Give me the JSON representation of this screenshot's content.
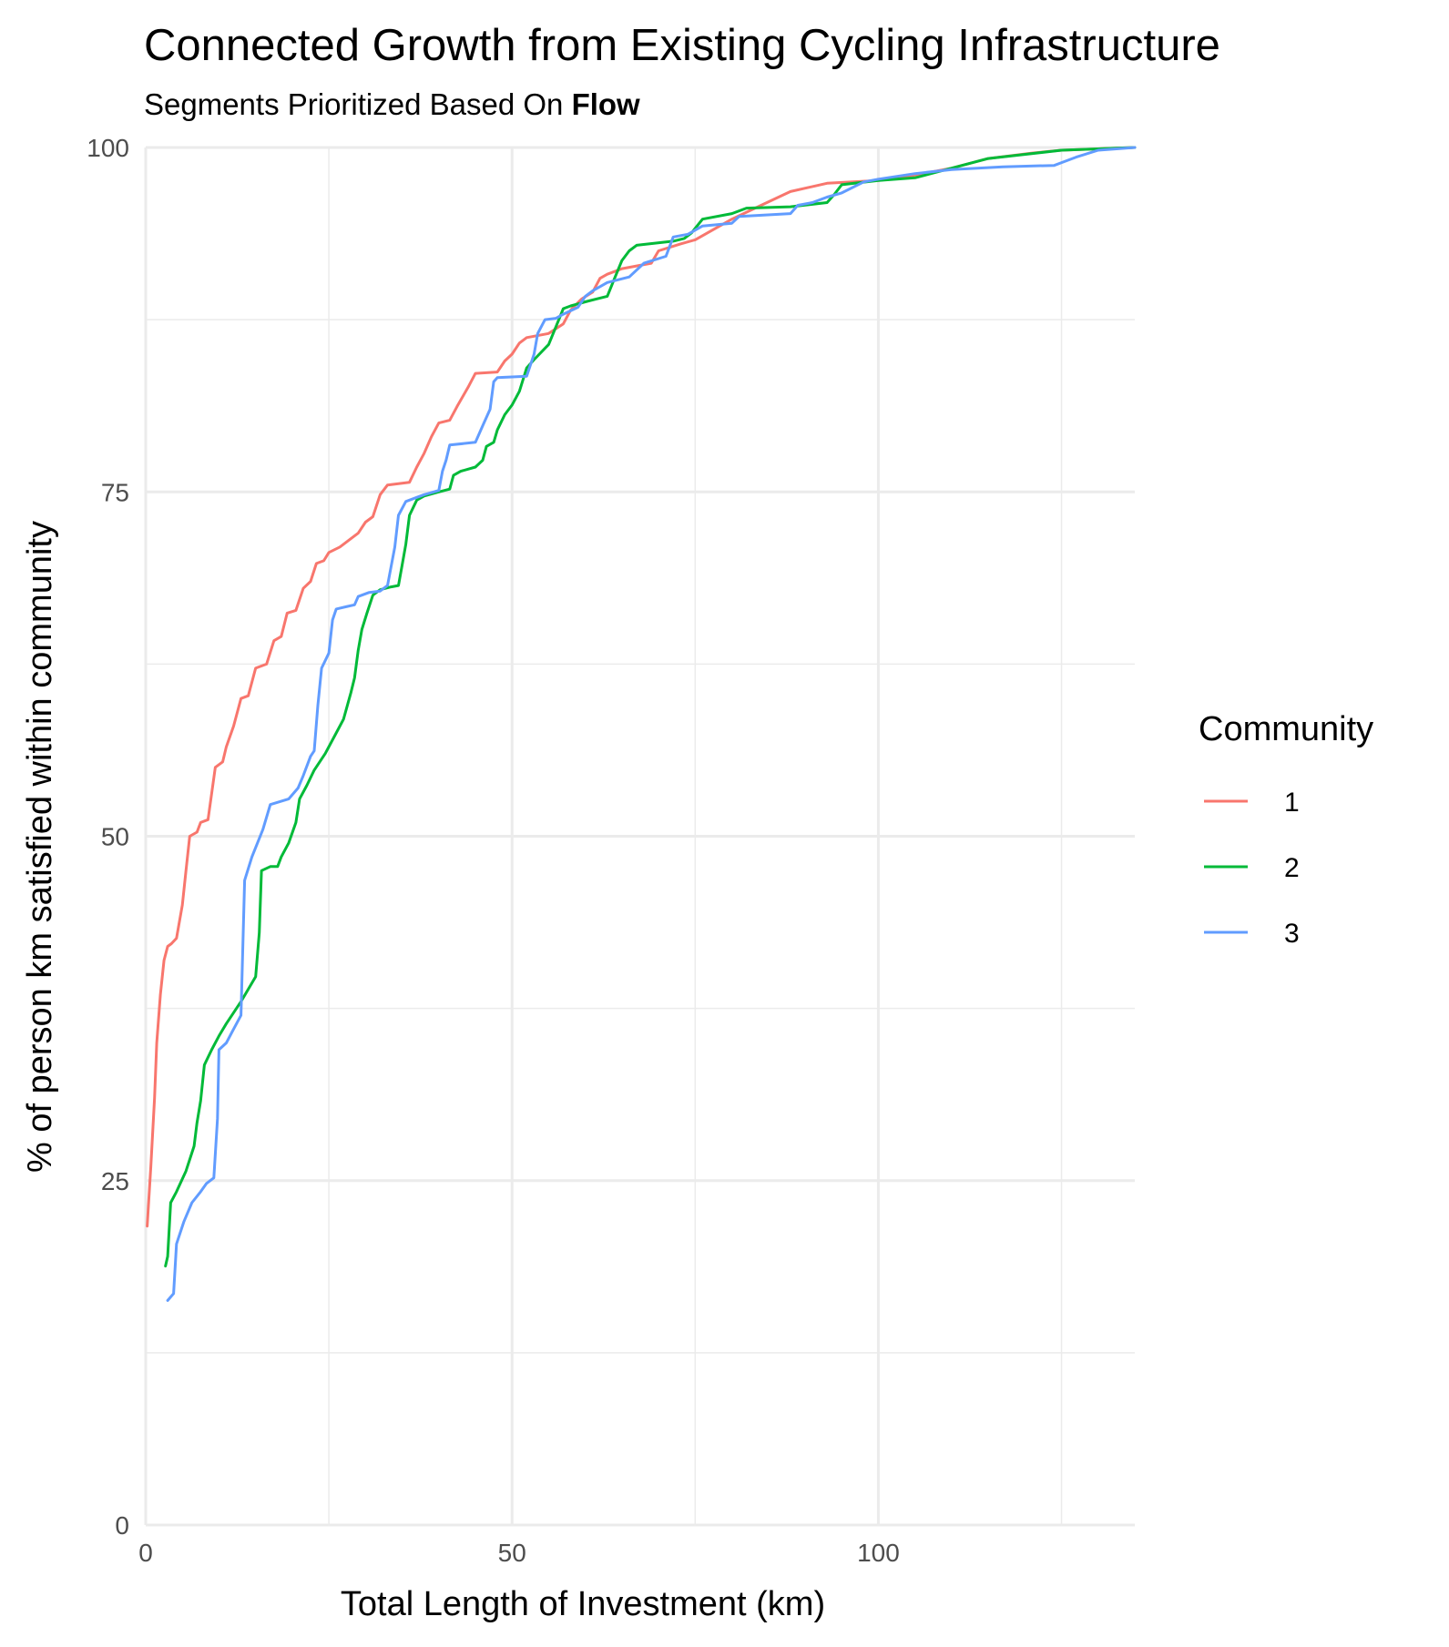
{
  "chart_data": {
    "type": "line",
    "title": "Connected Growth from Existing Cycling Infrastructure",
    "subtitle_prefix": "Segments Prioritized Based On ",
    "subtitle_emphasis": "Flow",
    "xlabel": "Total Length of Investment (km)",
    "ylabel": "% of person km satisfied within community",
    "xlim": [
      0,
      135
    ],
    "ylim": [
      0,
      100
    ],
    "x_ticks": [
      0,
      50,
      100
    ],
    "y_ticks": [
      0,
      25,
      50,
      75,
      100
    ],
    "grid": true,
    "legend": {
      "title": "Community",
      "position": "right"
    },
    "series": [
      {
        "name": "1",
        "color": "#F8766D",
        "points": [
          [
            0.2,
            21.7
          ],
          [
            0.7,
            26
          ],
          [
            1.2,
            31
          ],
          [
            1.5,
            35
          ],
          [
            2,
            38.5
          ],
          [
            2.5,
            41
          ],
          [
            3,
            42
          ],
          [
            3.5,
            42.2
          ],
          [
            4.2,
            42.6
          ],
          [
            5,
            45
          ],
          [
            5.5,
            47.5
          ],
          [
            6,
            50
          ],
          [
            7,
            50.3
          ],
          [
            7.5,
            51
          ],
          [
            8.5,
            51.2
          ],
          [
            9.5,
            55
          ],
          [
            10.5,
            55.4
          ],
          [
            11,
            56.5
          ],
          [
            12,
            58
          ],
          [
            13,
            60
          ],
          [
            14,
            60.2
          ],
          [
            15,
            62.2
          ],
          [
            16.5,
            62.5
          ],
          [
            17.5,
            64.2
          ],
          [
            18.5,
            64.5
          ],
          [
            19.3,
            66.2
          ],
          [
            20.5,
            66.4
          ],
          [
            21.5,
            68
          ],
          [
            22.5,
            68.5
          ],
          [
            23.3,
            69.8
          ],
          [
            24.3,
            70
          ],
          [
            25,
            70.6
          ],
          [
            26.5,
            71
          ],
          [
            28,
            71.6
          ],
          [
            29,
            72
          ],
          [
            30,
            72.8
          ],
          [
            31,
            73.2
          ],
          [
            32,
            74.8
          ],
          [
            33,
            75.5
          ],
          [
            36,
            75.7
          ],
          [
            37,
            76.8
          ],
          [
            38,
            77.8
          ],
          [
            39,
            79
          ],
          [
            40,
            80
          ],
          [
            41.5,
            80.2
          ],
          [
            42.5,
            81.2
          ],
          [
            44,
            82.6
          ],
          [
            45,
            83.6
          ],
          [
            48,
            83.7
          ],
          [
            49,
            84.5
          ],
          [
            50,
            85
          ],
          [
            51,
            85.8
          ],
          [
            52,
            86.2
          ],
          [
            55,
            86.5
          ],
          [
            57,
            87.2
          ],
          [
            58,
            88.2
          ],
          [
            59.5,
            89
          ],
          [
            61,
            89.5
          ],
          [
            62,
            90.5
          ],
          [
            63,
            90.8
          ],
          [
            65,
            91.2
          ],
          [
            69,
            91.6
          ],
          [
            70,
            92.5
          ],
          [
            73,
            93
          ],
          [
            75,
            93.3
          ],
          [
            80,
            94.8
          ],
          [
            84,
            95.8
          ],
          [
            88,
            96.8
          ],
          [
            93,
            97.4
          ],
          [
            100,
            97.6
          ],
          [
            105,
            98
          ],
          [
            110,
            98.5
          ],
          [
            115,
            99.2
          ],
          [
            121,
            99.6
          ],
          [
            125,
            99.8
          ],
          [
            135,
            100
          ]
        ]
      },
      {
        "name": "2",
        "color": "#00BA38",
        "points": [
          [
            2.7,
            18.8
          ],
          [
            3,
            19.5
          ],
          [
            3.4,
            23.4
          ],
          [
            4.2,
            24.2
          ],
          [
            5.5,
            25.7
          ],
          [
            6.6,
            27.5
          ],
          [
            7,
            29.2
          ],
          [
            7.5,
            30.8
          ],
          [
            8,
            33.4
          ],
          [
            9,
            34.5
          ],
          [
            10,
            35.5
          ],
          [
            11,
            36.4
          ],
          [
            13,
            38
          ],
          [
            15,
            39.8
          ],
          [
            15.5,
            43
          ],
          [
            15.8,
            47.5
          ],
          [
            17,
            47.8
          ],
          [
            18,
            47.8
          ],
          [
            18.5,
            48.5
          ],
          [
            19.5,
            49.5
          ],
          [
            20.5,
            51
          ],
          [
            21,
            52.7
          ],
          [
            22,
            53.7
          ],
          [
            23,
            54.8
          ],
          [
            24.5,
            56
          ],
          [
            26,
            57.5
          ],
          [
            27,
            58.5
          ],
          [
            28,
            60.4
          ],
          [
            28.5,
            61.5
          ],
          [
            29,
            63.5
          ],
          [
            29.5,
            65
          ],
          [
            30.2,
            66.2
          ],
          [
            31,
            67.5
          ],
          [
            32,
            67.9
          ],
          [
            33.5,
            68.1
          ],
          [
            34.5,
            68.2
          ],
          [
            35,
            69.7
          ],
          [
            35.5,
            71.2
          ],
          [
            36,
            73.3
          ],
          [
            37,
            74.4
          ],
          [
            38,
            74.7
          ],
          [
            40,
            75
          ],
          [
            41.5,
            75.2
          ],
          [
            42,
            76.2
          ],
          [
            43,
            76.5
          ],
          [
            45,
            76.8
          ],
          [
            46,
            77.3
          ],
          [
            46.5,
            78.3
          ],
          [
            47.5,
            78.6
          ],
          [
            48,
            79.5
          ],
          [
            49,
            80.6
          ],
          [
            50,
            81.3
          ],
          [
            51,
            82.3
          ],
          [
            52,
            84
          ],
          [
            53,
            84.6
          ],
          [
            55,
            85.7
          ],
          [
            56,
            87
          ],
          [
            57,
            88.3
          ],
          [
            58,
            88.5
          ],
          [
            60,
            88.8
          ],
          [
            61.5,
            89
          ],
          [
            63,
            89.2
          ],
          [
            64,
            90.5
          ],
          [
            65,
            91.8
          ],
          [
            66,
            92.5
          ],
          [
            67,
            92.9
          ],
          [
            72,
            93.2
          ],
          [
            73.5,
            93.4
          ],
          [
            74.5,
            93.8
          ],
          [
            76,
            94.8
          ],
          [
            80,
            95.2
          ],
          [
            82,
            95.6
          ],
          [
            88,
            95.7
          ],
          [
            93,
            96
          ],
          [
            94,
            96.6
          ],
          [
            95,
            97.3
          ],
          [
            100,
            97.6
          ],
          [
            105,
            97.8
          ],
          [
            110,
            98.5
          ],
          [
            115,
            99.2
          ],
          [
            125,
            99.8
          ],
          [
            135,
            100
          ]
        ]
      },
      {
        "name": "3",
        "color": "#619CFF",
        "points": [
          [
            3,
            16.3
          ],
          [
            3.8,
            16.8
          ],
          [
            4.2,
            20.4
          ],
          [
            5.2,
            22
          ],
          [
            6.3,
            23.4
          ],
          [
            7.5,
            24.2
          ],
          [
            8.3,
            24.8
          ],
          [
            9.3,
            25.2
          ],
          [
            9.8,
            29.5
          ],
          [
            10,
            34.5
          ],
          [
            11,
            35
          ],
          [
            12,
            36
          ],
          [
            13,
            37
          ],
          [
            13.5,
            46.8
          ],
          [
            14.5,
            48.5
          ],
          [
            16,
            50.5
          ],
          [
            17,
            52.3
          ],
          [
            19.5,
            52.7
          ],
          [
            20.8,
            53.5
          ],
          [
            21.5,
            54.4
          ],
          [
            22.5,
            55.8
          ],
          [
            23,
            56.2
          ],
          [
            23.5,
            59.5
          ],
          [
            24,
            62.2
          ],
          [
            25,
            63.3
          ],
          [
            25.5,
            65.7
          ],
          [
            26,
            66.5
          ],
          [
            28.5,
            66.8
          ],
          [
            29,
            67.4
          ],
          [
            30.5,
            67.7
          ],
          [
            32,
            67.8
          ],
          [
            33,
            68.2
          ],
          [
            34,
            71
          ],
          [
            34.5,
            73.3
          ],
          [
            35.5,
            74.3
          ],
          [
            37,
            74.6
          ],
          [
            38,
            74.8
          ],
          [
            40,
            75.1
          ],
          [
            40.5,
            76.5
          ],
          [
            41,
            77.3
          ],
          [
            41.5,
            78.4
          ],
          [
            45,
            78.6
          ],
          [
            46,
            79.8
          ],
          [
            47,
            81
          ],
          [
            47.5,
            83
          ],
          [
            48,
            83.3
          ],
          [
            52,
            83.4
          ],
          [
            53,
            85
          ],
          [
            53.5,
            86.5
          ],
          [
            54.5,
            87.5
          ],
          [
            56,
            87.6
          ],
          [
            57,
            87.9
          ],
          [
            59,
            88.4
          ],
          [
            60,
            89.2
          ],
          [
            61,
            89.6
          ],
          [
            63,
            90.2
          ],
          [
            66,
            90.6
          ],
          [
            68,
            91.6
          ],
          [
            71,
            92.1
          ],
          [
            72,
            93.5
          ],
          [
            74,
            93.7
          ],
          [
            76,
            94.3
          ],
          [
            80,
            94.5
          ],
          [
            81,
            95
          ],
          [
            88,
            95.2
          ],
          [
            89,
            95.8
          ],
          [
            91,
            96
          ],
          [
            93,
            96.4
          ],
          [
            95,
            96.7
          ],
          [
            98,
            97.5
          ],
          [
            100,
            97.7
          ],
          [
            105,
            98.1
          ],
          [
            110,
            98.4
          ],
          [
            117,
            98.6
          ],
          [
            124,
            98.7
          ],
          [
            125,
            98.9
          ],
          [
            127,
            99.3
          ],
          [
            130,
            99.8
          ],
          [
            135,
            100
          ]
        ]
      }
    ]
  }
}
